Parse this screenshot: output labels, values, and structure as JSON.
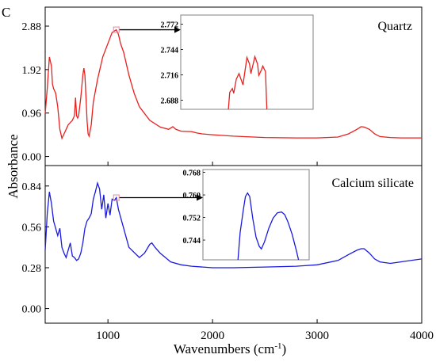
{
  "panel_letter": "C",
  "colors": {
    "quartz": "#e8201e",
    "calcium_silicate": "#1a1adf",
    "marker": "#e08aa0",
    "axis": "#000000",
    "inset_border": "#808080"
  },
  "chart_data": [
    {
      "type": "line",
      "panel": "top",
      "series": [
        {
          "name": "Quartz",
          "x": [
            400,
            420,
            440,
            460,
            470,
            480,
            500,
            520,
            540,
            560,
            580,
            600,
            620,
            640,
            660,
            680,
            690,
            700,
            710,
            720,
            740,
            760,
            770,
            780,
            790,
            800,
            810,
            820,
            840,
            860,
            900,
            950,
            1000,
            1040,
            1060,
            1080,
            1100,
            1120,
            1150,
            1200,
            1250,
            1300,
            1400,
            1500,
            1580,
            1620,
            1650,
            1700,
            1800,
            1850,
            1900,
            2000,
            2200,
            2500,
            2800,
            3000,
            3200,
            3300,
            3380,
            3420,
            3450,
            3500,
            3550,
            3600,
            3700,
            3800,
            4000
          ],
          "y": [
            0.95,
            1.5,
            2.2,
            2.0,
            1.6,
            1.5,
            1.4,
            1.1,
            0.6,
            0.4,
            0.5,
            0.6,
            0.7,
            0.75,
            0.8,
            0.9,
            1.3,
            0.9,
            0.85,
            0.9,
            1.3,
            1.8,
            1.95,
            1.8,
            1.3,
            0.8,
            0.5,
            0.45,
            0.7,
            1.2,
            1.7,
            2.2,
            2.5,
            2.74,
            2.77,
            2.8,
            2.7,
            2.5,
            2.3,
            1.8,
            1.4,
            1.1,
            0.8,
            0.65,
            0.6,
            0.66,
            0.6,
            0.56,
            0.55,
            0.52,
            0.5,
            0.48,
            0.45,
            0.42,
            0.41,
            0.41,
            0.43,
            0.5,
            0.6,
            0.66,
            0.65,
            0.6,
            0.5,
            0.44,
            0.42,
            0.41,
            0.41
          ]
        }
      ],
      "ylabel_ticks": [
        "0.00",
        "0.96",
        "1.92",
        "2.88"
      ],
      "yticks": [
        0,
        0.96,
        1.92,
        2.88
      ],
      "ylim": [
        -0.2,
        3.3
      ],
      "legend": "Quartz",
      "inset": {
        "yticks": [
          "2.688",
          "2.716",
          "2.744",
          "2.772"
        ],
        "values": [
          2.716,
          2.744,
          2.772
        ],
        "ylim": [
          2.678,
          2.782
        ]
      }
    },
    {
      "type": "line",
      "panel": "bottom",
      "series": [
        {
          "name": "Calcium silicate",
          "x": [
            400,
            420,
            440,
            460,
            480,
            500,
            520,
            540,
            560,
            580,
            600,
            620,
            640,
            660,
            680,
            700,
            720,
            740,
            760,
            780,
            800,
            820,
            840,
            860,
            880,
            900,
            920,
            940,
            960,
            980,
            1000,
            1020,
            1040,
            1060,
            1080,
            1100,
            1150,
            1200,
            1300,
            1350,
            1400,
            1420,
            1450,
            1500,
            1550,
            1600,
            1700,
            1800,
            2000,
            2200,
            2500,
            2800,
            3000,
            3200,
            3300,
            3380,
            3420,
            3450,
            3500,
            3550,
            3600,
            3700,
            3800,
            4000
          ],
          "y": [
            0.4,
            0.65,
            0.8,
            0.72,
            0.6,
            0.55,
            0.5,
            0.55,
            0.42,
            0.38,
            0.35,
            0.4,
            0.45,
            0.36,
            0.35,
            0.33,
            0.34,
            0.38,
            0.45,
            0.55,
            0.6,
            0.62,
            0.65,
            0.75,
            0.8,
            0.86,
            0.82,
            0.68,
            0.78,
            0.62,
            0.72,
            0.64,
            0.75,
            0.74,
            0.76,
            0.68,
            0.55,
            0.42,
            0.35,
            0.38,
            0.44,
            0.45,
            0.42,
            0.38,
            0.35,
            0.32,
            0.3,
            0.29,
            0.28,
            0.28,
            0.285,
            0.29,
            0.3,
            0.33,
            0.37,
            0.4,
            0.41,
            0.41,
            0.38,
            0.34,
            0.32,
            0.31,
            0.32,
            0.34
          ]
        }
      ],
      "ylabel_ticks": [
        "0.00",
        "0.28",
        "0.56",
        "0.84"
      ],
      "yticks": [
        0,
        0.28,
        0.56,
        0.84
      ],
      "ylim": [
        -0.1,
        0.98
      ],
      "legend": "Calcium silicate",
      "inset": {
        "yticks": [
          "0.744",
          "0.752",
          "0.760",
          "0.768"
        ],
        "values": [
          0.744,
          0.752,
          0.76,
          0.768
        ],
        "ylim": [
          0.737,
          0.769
        ]
      }
    }
  ],
  "xaxis": {
    "label": "Wavenumbers (cm",
    "label_sup": "-1",
    "label_close": ")",
    "ticks": [
      "1000",
      "2000",
      "3000",
      "4000"
    ],
    "tick_values": [
      1000,
      2000,
      3000,
      4000
    ],
    "xlim": [
      400,
      4000
    ]
  },
  "ylabel": "Absorbance"
}
